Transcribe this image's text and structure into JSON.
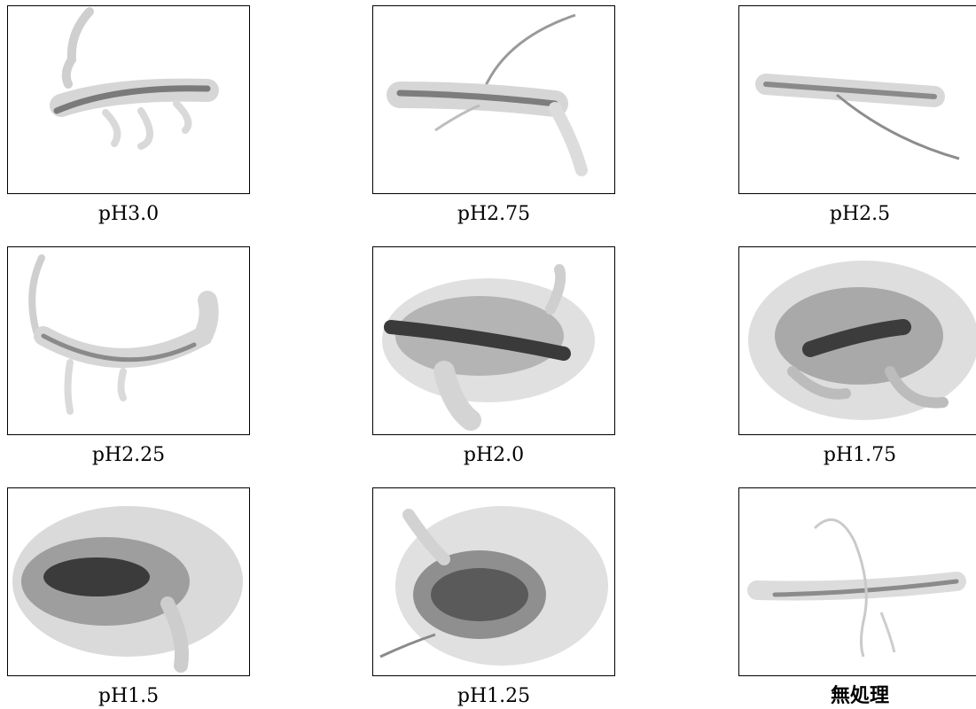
{
  "panels": [
    {
      "caption": "pH3.0"
    },
    {
      "caption": "pH2.75"
    },
    {
      "caption": "pH2.5"
    },
    {
      "caption": "pH2.25"
    },
    {
      "caption": "pH2.0"
    },
    {
      "caption": "pH1.75"
    },
    {
      "caption": "pH1.5"
    },
    {
      "caption": "pH1.25"
    },
    {
      "caption": "無処理"
    }
  ]
}
